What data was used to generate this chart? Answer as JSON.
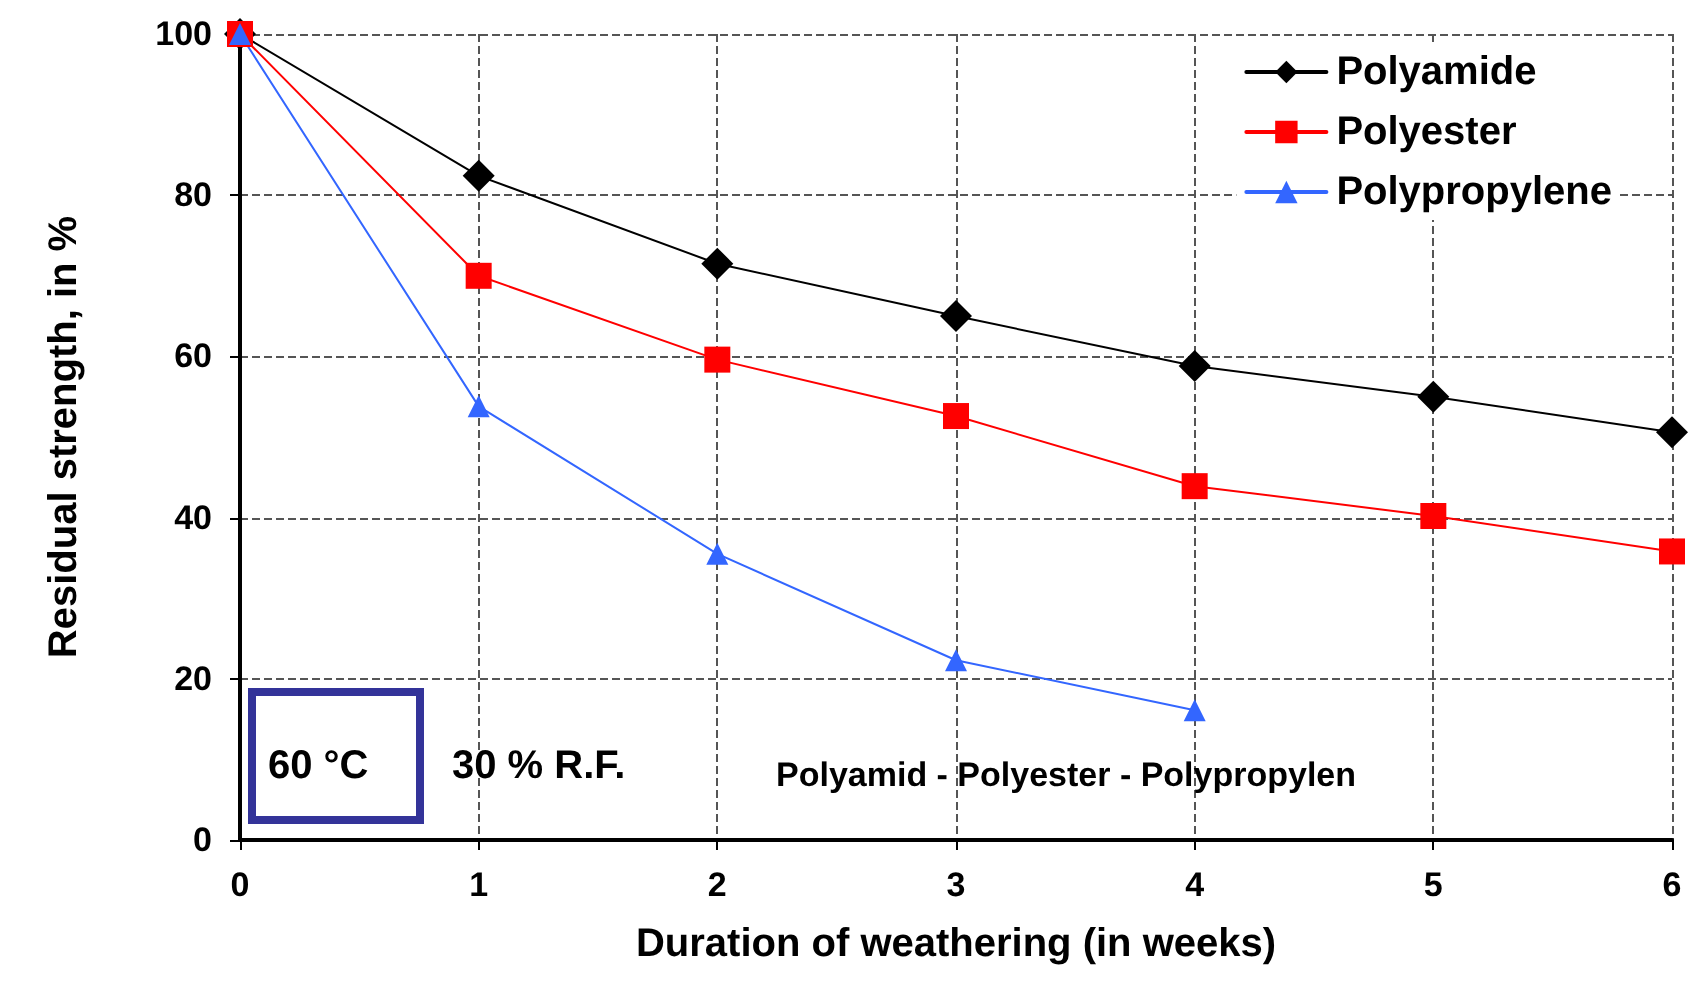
{
  "chart_data": {
    "type": "line",
    "xlabel": "Duration of weathering (in weeks)",
    "ylabel": "Residual strength, in %",
    "x": [
      0,
      1,
      2,
      3,
      4,
      5,
      6
    ],
    "series": [
      {
        "name": "Polyamide",
        "color": "#000000",
        "marker": "diamond",
        "values": [
          100,
          82.4,
          71.5,
          65,
          58.8,
          55,
          50.6
        ]
      },
      {
        "name": "Polyester",
        "color": "#ff0000",
        "marker": "square",
        "values": [
          100,
          70,
          59.6,
          52.6,
          43.9,
          40.2,
          35.8
        ]
      },
      {
        "name": "Polypropylene",
        "color": "#3366ff",
        "marker": "triangle",
        "values": [
          100,
          53.8,
          35.5,
          22.3,
          16.1,
          null,
          null
        ]
      }
    ],
    "xlim": [
      0,
      6
    ],
    "xticks": [
      0,
      1,
      2,
      3,
      4,
      5,
      6
    ],
    "ylim": [
      0,
      100
    ],
    "yticks": [
      0,
      20,
      40,
      60,
      80,
      100
    ],
    "grid": true,
    "legend": "top right",
    "line_style": "solid",
    "annotations": [
      "60 °C",
      "30 % R.F.",
      "Polyamid - Polyester - Polypropylen"
    ]
  }
}
